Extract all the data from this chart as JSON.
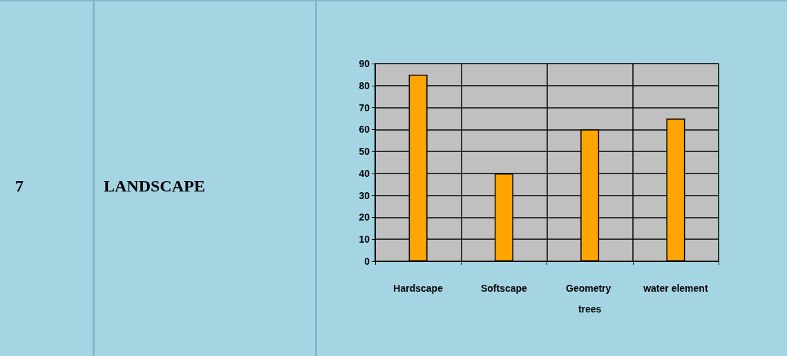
{
  "chart_data": {
    "type": "bar",
    "annotations": [
      "7",
      "LANDSCAPE"
    ],
    "categories": [
      "Hardscape",
      "Softscape",
      "Geometry trees",
      "water element"
    ],
    "values": [
      85,
      40,
      60,
      65
    ],
    "color": "#ffa500",
    "ylim": [
      0,
      90
    ],
    "yticks": [
      0,
      10,
      20,
      30,
      40,
      50,
      60,
      70,
      80,
      90
    ],
    "grid": true
  }
}
